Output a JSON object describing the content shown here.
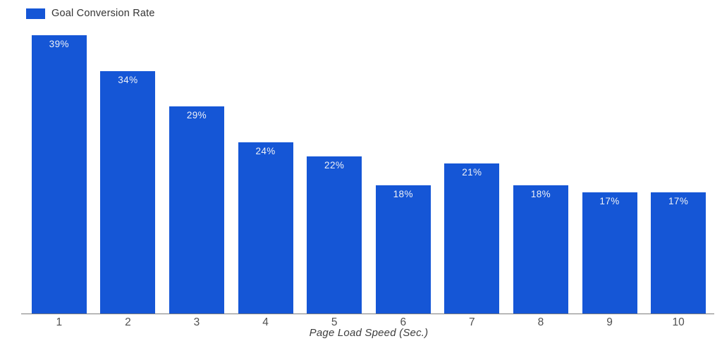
{
  "legend": {
    "label": "Goal Conversion Rate",
    "swatch_icon": "legend-swatch-square"
  },
  "chart_data": {
    "type": "bar",
    "title": "",
    "categories": [
      "1",
      "2",
      "3",
      "4",
      "5",
      "6",
      "7",
      "8",
      "9",
      "10"
    ],
    "series": [
      {
        "name": "Goal Conversion Rate",
        "values": [
          39,
          34,
          29,
          24,
          22,
          18,
          21,
          18,
          17,
          17
        ],
        "labels": [
          "39%",
          "34%",
          "29%",
          "24%",
          "22%",
          "18%",
          "21%",
          "18%",
          "17%",
          "17%"
        ]
      }
    ],
    "xlabel": "Page Load Speed (Sec.)",
    "ylabel": "",
    "ylim": [
      0,
      39.5
    ],
    "grid": false,
    "y_axis_visible": false,
    "legend_position": "top-left",
    "value_label_position": "inside-top",
    "colors": {
      "bar": "#1556d6",
      "bar_value_label": "#eef1f7",
      "axis_line": "#7d7d7d",
      "tick_text": "#4f4f4f",
      "axis_title_text": "#3d3d3d",
      "legend_text": "#333333",
      "background": "#ffffff"
    }
  }
}
